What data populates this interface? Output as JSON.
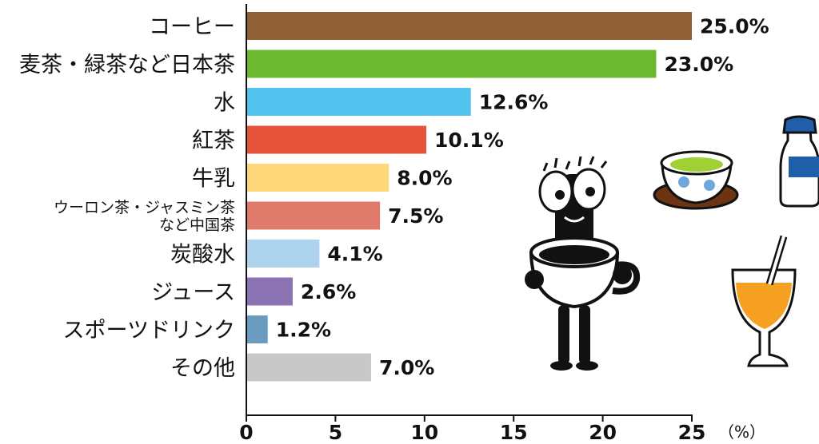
{
  "chart_data": {
    "type": "bar",
    "orientation": "horizontal",
    "categories": [
      "コーヒー",
      "麦茶・緑茶など日本茶",
      "水",
      "紅茶",
      "牛乳",
      "ウーロン茶・ジャスミン茶\nなど中国茶",
      "炭酸水",
      "ジュース",
      "スポーツドリンク",
      "その他"
    ],
    "values": [
      25.0,
      23.0,
      12.6,
      10.1,
      8.0,
      7.5,
      4.1,
      2.6,
      1.2,
      7.0
    ],
    "value_labels": [
      "25.0%",
      "23.0%",
      "12.6%",
      "10.1%",
      "8.0%",
      "7.5%",
      "4.1%",
      "2.6%",
      "1.2%",
      "7.0%"
    ],
    "colors": [
      "#8f5f35",
      "#6cb82e",
      "#52c2ee",
      "#e5533a",
      "#fdd77a",
      "#e07a6a",
      "#aed3ee",
      "#8a72b3",
      "#6a9cc2",
      "#c8c8c8"
    ],
    "xlim": [
      0,
      25
    ],
    "xticks": [
      0,
      5,
      10,
      15,
      20,
      25
    ],
    "x_unit": "（%）",
    "grid": false,
    "legend": "none"
  },
  "illustrations": [
    "tea-cup-icon",
    "milk-bottle-icon",
    "coffee-character-icon",
    "juice-glass-icon"
  ]
}
